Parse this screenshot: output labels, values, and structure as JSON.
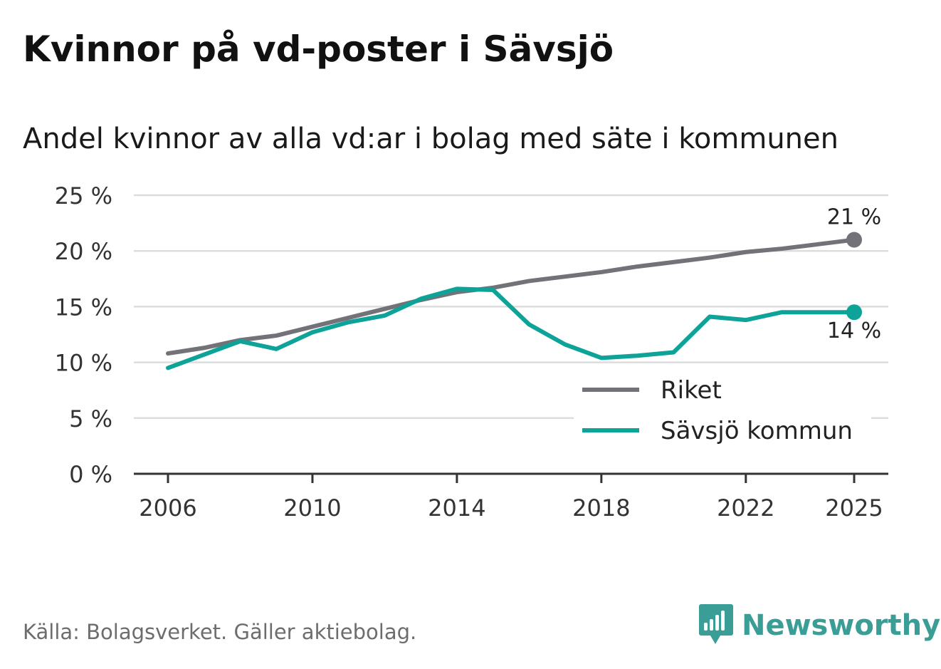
{
  "header": {
    "title": "Kvinnor på vd-poster i Sävsjö",
    "subtitle": "Andel kvinnor av alla vd:ar i bolag med säte i kommunen"
  },
  "footer": {
    "source": "Källa: Bolagsverket. Gäller aktiebolag.",
    "brand": "Newsworthy",
    "brand_icon": "newsworthy-logo-icon"
  },
  "colors": {
    "riket": "#727278",
    "kommun": "#0ea398",
    "grid": "#dddddd",
    "axis": "#333333",
    "brand": "#3a9e96"
  },
  "chart_data": {
    "type": "line",
    "x": [
      2006,
      2007,
      2008,
      2009,
      2010,
      2011,
      2012,
      2013,
      2014,
      2015,
      2016,
      2017,
      2018,
      2019,
      2020,
      2021,
      2022,
      2023,
      2024,
      2025
    ],
    "series": [
      {
        "name": "Riket",
        "values": [
          10.8,
          11.3,
          12.0,
          12.4,
          13.2,
          14.0,
          14.8,
          15.6,
          16.3,
          16.7,
          17.3,
          17.7,
          18.1,
          18.6,
          19.0,
          19.4,
          19.9,
          20.2,
          20.6,
          21.0
        ],
        "end_label": "21 %"
      },
      {
        "name": "Sävsjö kommun",
        "values": [
          9.5,
          10.7,
          11.9,
          11.2,
          12.7,
          13.6,
          14.2,
          15.7,
          16.6,
          16.5,
          13.4,
          11.6,
          10.4,
          10.6,
          10.9,
          14.1,
          13.8,
          14.5,
          14.5,
          14.5
        ],
        "end_label": "14 %"
      }
    ],
    "ylim": [
      0,
      25
    ],
    "yticks": [
      0,
      5,
      10,
      15,
      20,
      25
    ],
    "ytick_labels": [
      "0 %",
      "5 %",
      "10 %",
      "15 %",
      "20 %",
      "25 %"
    ],
    "xticks": [
      2006,
      2010,
      2014,
      2018,
      2022,
      2025
    ],
    "xtick_labels": [
      "2006",
      "2010",
      "2014",
      "2018",
      "2022",
      "2025"
    ],
    "legend": {
      "position": "bottom-right",
      "entries": [
        "Riket",
        "Sävsjö kommun"
      ]
    },
    "grid": true
  }
}
